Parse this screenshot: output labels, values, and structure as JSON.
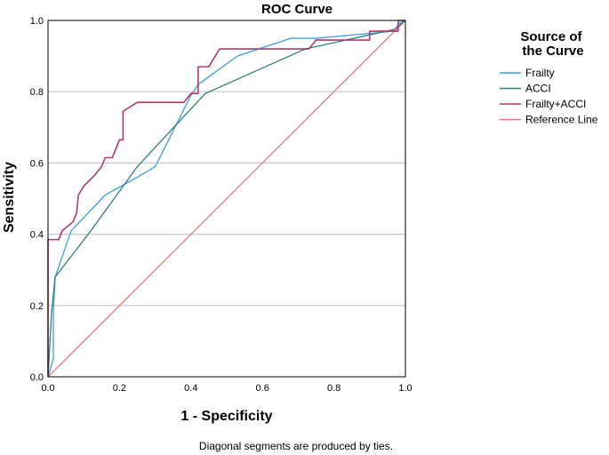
{
  "chart_data": {
    "type": "line",
    "title": "ROC Curve",
    "xlabel": "1 - Specificity",
    "ylabel": "Sensitivity",
    "xlim": [
      0,
      1
    ],
    "ylim": [
      0,
      1
    ],
    "xticks": [
      "0.0",
      "0.2",
      "0.4",
      "0.6",
      "0.8",
      "1.0"
    ],
    "yticks": [
      "0.0",
      "0.2",
      "0.4",
      "0.6",
      "0.8",
      "1.0"
    ],
    "grid": "horizontal",
    "legend_title": "Source of the Curve",
    "legend_position": "right",
    "footnote": "Diagonal segments are produced by ties.",
    "series": [
      {
        "name": "Frailty",
        "color": "#3b9ee3",
        "points": [
          [
            0,
            0
          ],
          [
            0.015,
            0.05
          ],
          [
            0.015,
            0.18
          ],
          [
            0.02,
            0.28
          ],
          [
            0.065,
            0.41
          ],
          [
            0.16,
            0.51
          ],
          [
            0.25,
            0.56
          ],
          [
            0.3,
            0.59
          ],
          [
            0.4,
            0.79
          ],
          [
            0.42,
            0.82
          ],
          [
            0.53,
            0.9
          ],
          [
            0.68,
            0.95
          ],
          [
            0.75,
            0.95
          ],
          [
            0.97,
            0.97
          ],
          [
            0.98,
            0.99
          ],
          [
            1,
            1
          ]
        ]
      },
      {
        "name": "ACCI",
        "color": "#2e7d7a",
        "points": [
          [
            0,
            0
          ],
          [
            0.01,
            0.18
          ],
          [
            0.02,
            0.28
          ],
          [
            0.12,
            0.41
          ],
          [
            0.25,
            0.59
          ],
          [
            0.44,
            0.795
          ],
          [
            0.72,
            0.92
          ],
          [
            0.97,
            0.975
          ],
          [
            1,
            1
          ]
        ]
      },
      {
        "name": "Frailty+ACCI",
        "color": "#b5376b",
        "points": [
          [
            0,
            0
          ],
          [
            0,
            0.385
          ],
          [
            0.03,
            0.385
          ],
          [
            0.04,
            0.41
          ],
          [
            0.07,
            0.435
          ],
          [
            0.08,
            0.46
          ],
          [
            0.085,
            0.51
          ],
          [
            0.1,
            0.535
          ],
          [
            0.13,
            0.565
          ],
          [
            0.15,
            0.59
          ],
          [
            0.16,
            0.615
          ],
          [
            0.18,
            0.615
          ],
          [
            0.2,
            0.665
          ],
          [
            0.21,
            0.665
          ],
          [
            0.21,
            0.745
          ],
          [
            0.25,
            0.77
          ],
          [
            0.38,
            0.77
          ],
          [
            0.4,
            0.795
          ],
          [
            0.42,
            0.795
          ],
          [
            0.42,
            0.87
          ],
          [
            0.45,
            0.87
          ],
          [
            0.48,
            0.92
          ],
          [
            0.73,
            0.92
          ],
          [
            0.75,
            0.945
          ],
          [
            0.9,
            0.945
          ],
          [
            0.9,
            0.97
          ],
          [
            0.98,
            0.97
          ],
          [
            0.98,
            1
          ],
          [
            1,
            1
          ]
        ]
      },
      {
        "name": "Reference Line",
        "color": "#f07878",
        "points": [
          [
            0,
            0
          ],
          [
            1,
            1
          ]
        ]
      }
    ]
  }
}
